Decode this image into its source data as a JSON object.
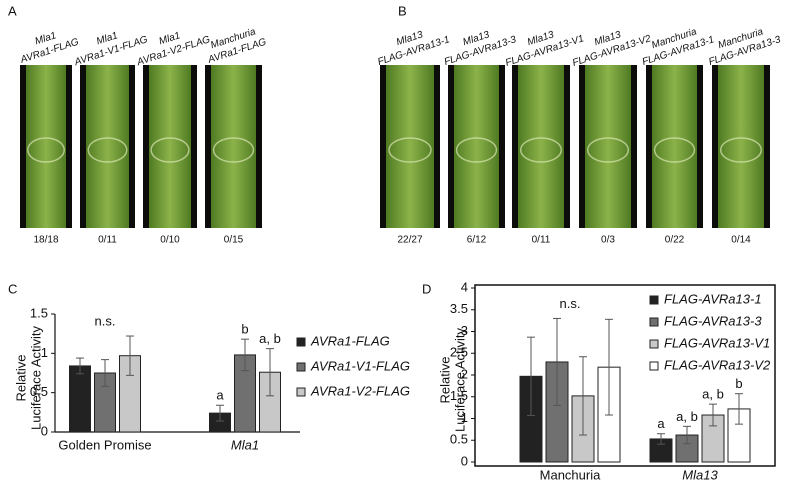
{
  "panels": {
    "A": {
      "label": "A",
      "leaves": [
        {
          "title": [
            "Mla1",
            "AVRa1-FLAG"
          ],
          "count": "18/18"
        },
        {
          "title": [
            "Mla1",
            "AVRa1-V1-FLAG"
          ],
          "count": "0/11"
        },
        {
          "title": [
            "Mla1",
            "AVRa1-V2-FLAG"
          ],
          "count": "0/10"
        },
        {
          "title": [
            "Manchuria",
            "AVRa1-FLAG"
          ],
          "count": "0/15"
        }
      ]
    },
    "B": {
      "label": "B",
      "leaves": [
        {
          "title": [
            "Mla13",
            "FLAG-AVRa13-1"
          ],
          "count": "22/27"
        },
        {
          "title": [
            "Mla13",
            "FLAG-AVRa13-3"
          ],
          "count": "6/12"
        },
        {
          "title": [
            "Mla13",
            "FLAG-AVRa13-V1"
          ],
          "count": "0/11"
        },
        {
          "title": [
            "Mla13",
            "FLAG-AVRa13-V2"
          ],
          "count": "0/3"
        },
        {
          "title": [
            "Manchuria",
            "FLAG-AVRa13-1"
          ],
          "count": "0/22"
        },
        {
          "title": [
            "Manchuria",
            "FLAG-AVRa13-3"
          ],
          "count": "0/14"
        }
      ]
    }
  },
  "chart_data": [
    {
      "type": "bar",
      "panel": "C",
      "ylabel": [
        "Relative",
        "Luciferace Activity"
      ],
      "categories": [
        "Golden Promise",
        "Mla1"
      ],
      "ylim": [
        0,
        1.5
      ],
      "yticks": [
        0,
        0.5,
        1,
        1.5
      ],
      "series": [
        {
          "name": "AVRa1-FLAG",
          "color": "#222222",
          "values": [
            0.84,
            0.24
          ],
          "errors": [
            0.1,
            0.1
          ]
        },
        {
          "name": "AVRa1-V1-FLAG",
          "color": "#707070",
          "values": [
            0.75,
            0.98
          ],
          "errors": [
            0.17,
            0.2
          ]
        },
        {
          "name": "AVRa1-V2-FLAG",
          "color": "#c8c8c8",
          "values": [
            0.97,
            0.76
          ],
          "errors": [
            0.25,
            0.3
          ]
        }
      ],
      "annotations": [
        "n.s.",
        "a",
        "b",
        "a, b"
      ]
    },
    {
      "type": "bar",
      "panel": "D",
      "ylabel": [
        "Relative",
        "Luciferace Activity"
      ],
      "categories": [
        "Manchuria",
        "Mla13"
      ],
      "ylim": [
        0,
        4
      ],
      "yticks": [
        0,
        0.5,
        1,
        1.5,
        2,
        2.5,
        3,
        3.5,
        4
      ],
      "series": [
        {
          "name": "FLAG-AVRa13-1",
          "color": "#222222",
          "values": [
            1.97,
            0.53
          ],
          "errors": [
            0.9,
            0.12
          ]
        },
        {
          "name": "FLAG-AVRa13-3",
          "color": "#707070",
          "values": [
            2.3,
            0.62
          ],
          "errors": [
            1.0,
            0.2
          ]
        },
        {
          "name": "FLAG-AVRa13-V1",
          "color": "#c8c8c8",
          "values": [
            1.52,
            1.08
          ],
          "errors": [
            0.9,
            0.25
          ]
        },
        {
          "name": "FLAG-AVRa13-V2",
          "color": "#ffffff",
          "values": [
            2.18,
            1.22
          ],
          "errors": [
            1.1,
            0.35
          ]
        }
      ],
      "annotations": [
        "n.s.",
        "a",
        "a, b",
        "a, b",
        "b"
      ]
    }
  ]
}
